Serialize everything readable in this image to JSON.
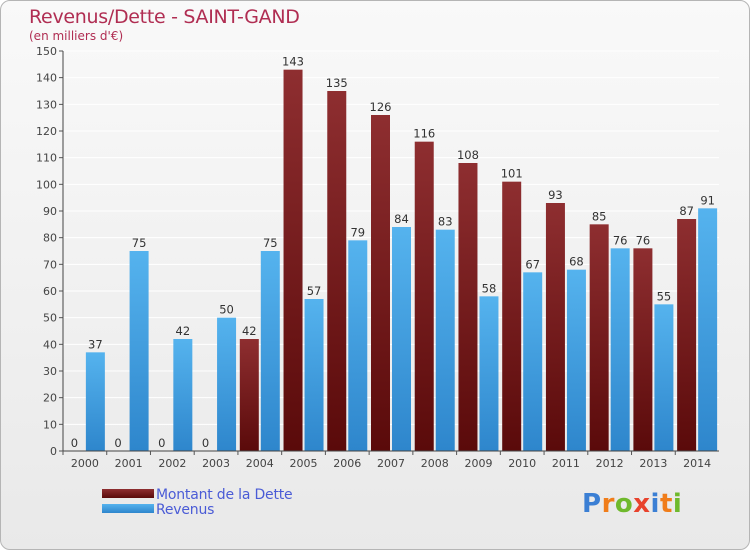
{
  "title": "Revenus/Dette - SAINT-GAND",
  "subtitle": "(en milliers d'€)",
  "brand": {
    "text": "Proxiti",
    "colors": [
      "#3b7fd4",
      "#f07d1a",
      "#6fb92c",
      "#e8422c",
      "#3b7fd4",
      "#f07d1a",
      "#6fb92c"
    ]
  },
  "chart_data": {
    "type": "bar",
    "categories": [
      "2000",
      "2001",
      "2002",
      "2003",
      "2004",
      "2005",
      "2006",
      "2007",
      "2008",
      "2009",
      "2010",
      "2011",
      "2012",
      "2013",
      "2014"
    ],
    "series": [
      {
        "name": "Montant de la Dette",
        "color": "#7a1a1a",
        "values": [
          0,
          0,
          0,
          0,
          42,
          143,
          135,
          126,
          116,
          108,
          101,
          93,
          85,
          76,
          87
        ]
      },
      {
        "name": "Revenus",
        "color": "#3f9de0",
        "values": [
          37,
          75,
          42,
          50,
          75,
          57,
          79,
          84,
          83,
          58,
          67,
          68,
          76,
          55,
          91
        ]
      }
    ],
    "ylim": [
      0,
      150
    ],
    "yticks": [
      0,
      10,
      20,
      30,
      40,
      50,
      60,
      70,
      80,
      90,
      100,
      110,
      120,
      130,
      140,
      150
    ],
    "grid": true,
    "legend_position": "bottom-left"
  }
}
